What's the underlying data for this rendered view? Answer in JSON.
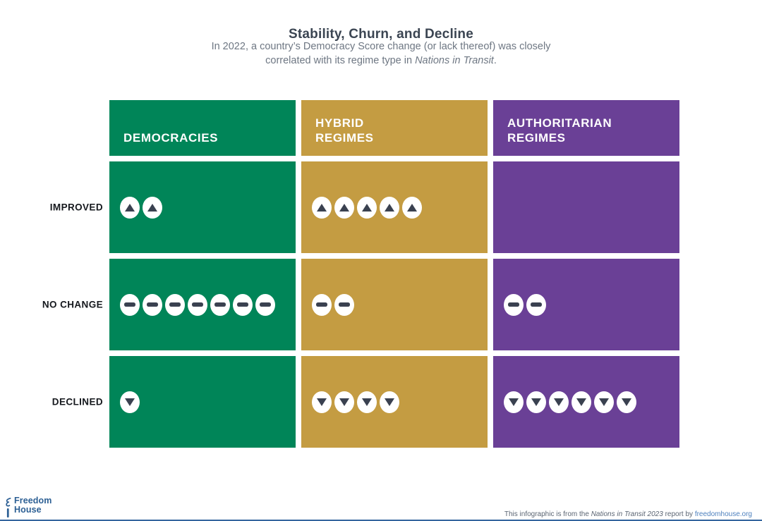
{
  "colors": {
    "green": "#008558",
    "gold": "#C49C42",
    "purple": "#6A4096",
    "icon_glyph": "#3A4150",
    "title_text": "#3B4552",
    "subtitle_text": "#6E7783",
    "label_text": "#15181D",
    "header_text": "#FFFFFF",
    "footer_blue": "#2C5F94",
    "link_blue": "#4E81BE",
    "attribution_text": "#5B6573",
    "bottom_bar": "#35659E"
  },
  "header": {
    "title": "Stability, Churn, and Decline",
    "subtitle_line1": "In 2022, a country’s Democracy Score change (or lack thereof) was closely",
    "subtitle_line2_pre": "correlated with its regime type in ",
    "subtitle_line2_italic": "Nations in Transit",
    "subtitle_line2_post": "."
  },
  "columns": [
    {
      "line1": "DEMOCRACIES",
      "line2": "",
      "color": "#008558"
    },
    {
      "line1": "HYBRID",
      "line2": "REGIMES",
      "color": "#C49C42"
    },
    {
      "line1": "AUTHORITARIAN",
      "line2": "REGIMES",
      "color": "#6A4096"
    }
  ],
  "rows": [
    {
      "label": "IMPROVED",
      "icon": "up-arrow",
      "counts": [
        2,
        5,
        0
      ]
    },
    {
      "label": "NO CHANGE",
      "icon": "minus",
      "counts": [
        7,
        2,
        2
      ]
    },
    {
      "label": "DECLINED",
      "icon": "down-arrow",
      "counts": [
        1,
        4,
        6
      ]
    }
  ],
  "chart_data": {
    "type": "table",
    "title": "Stability, Churn, and Decline",
    "subtitle": "In 2022, a country’s Democracy Score change (or lack thereof) was closely correlated with its regime type in Nations in Transit.",
    "columns": [
      "Democracies",
      "Hybrid Regimes",
      "Authoritarian Regimes"
    ],
    "rows": [
      "Improved",
      "No Change",
      "Declined"
    ],
    "values": [
      [
        2,
        5,
        0
      ],
      [
        7,
        2,
        2
      ],
      [
        1,
        4,
        6
      ]
    ]
  },
  "footer": {
    "logo_line1": "Freedom",
    "logo_line2": "House",
    "attribution_pre": "This infographic is from the ",
    "attribution_italic": "Nations in Transit 2023",
    "attribution_mid": " report by ",
    "attribution_link": "freedomhouse.org"
  }
}
